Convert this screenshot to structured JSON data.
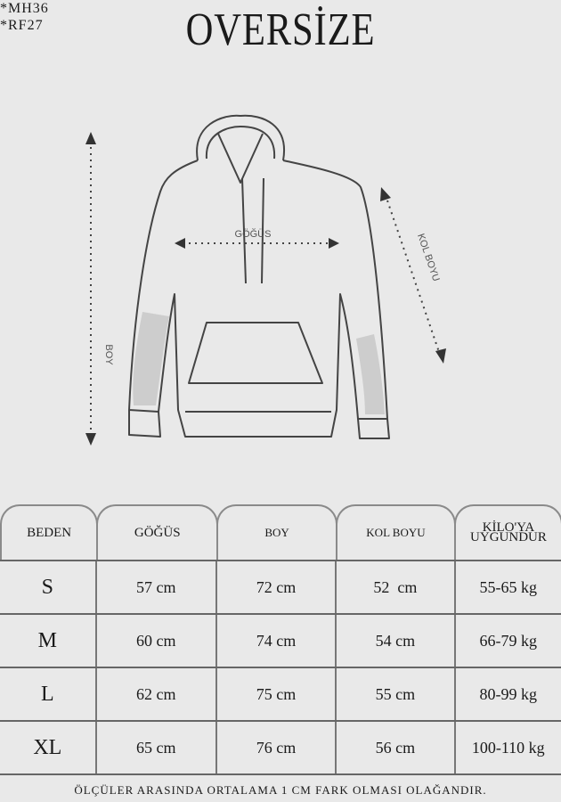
{
  "codes": [
    "*MH36",
    "*RF27"
  ],
  "title": "OVERSİZE",
  "diagram": {
    "chest_label": "GÖĞÜS",
    "length_label": "BOY",
    "sleeve_label": "KOL BOYU"
  },
  "table": {
    "headers": [
      "BEDEN",
      "GÖĞÜS",
      "BOY",
      "KOL BOYU",
      "KİLO'YA",
      "UYGUNDUR"
    ],
    "rows": [
      {
        "size": "S",
        "chest": "57 cm",
        "length": "72 cm",
        "sleeve": "52  cm",
        "weight": "55-65 kg"
      },
      {
        "size": "M",
        "chest": "60 cm",
        "length": "74 cm",
        "sleeve": "54 cm",
        "weight": "66-79 kg"
      },
      {
        "size": "L",
        "chest": "62 cm",
        "length": "75 cm",
        "sleeve": "55 cm",
        "weight": "80-99 kg"
      },
      {
        "size": "XL",
        "chest": "65 cm",
        "length": "76 cm",
        "sleeve": "56 cm",
        "weight": "100-110 kg"
      }
    ]
  },
  "footer": "ÖLÇÜLER ARASINDA ORTALAMA 1 CM FARK OLMASI OLAĞANDIR."
}
